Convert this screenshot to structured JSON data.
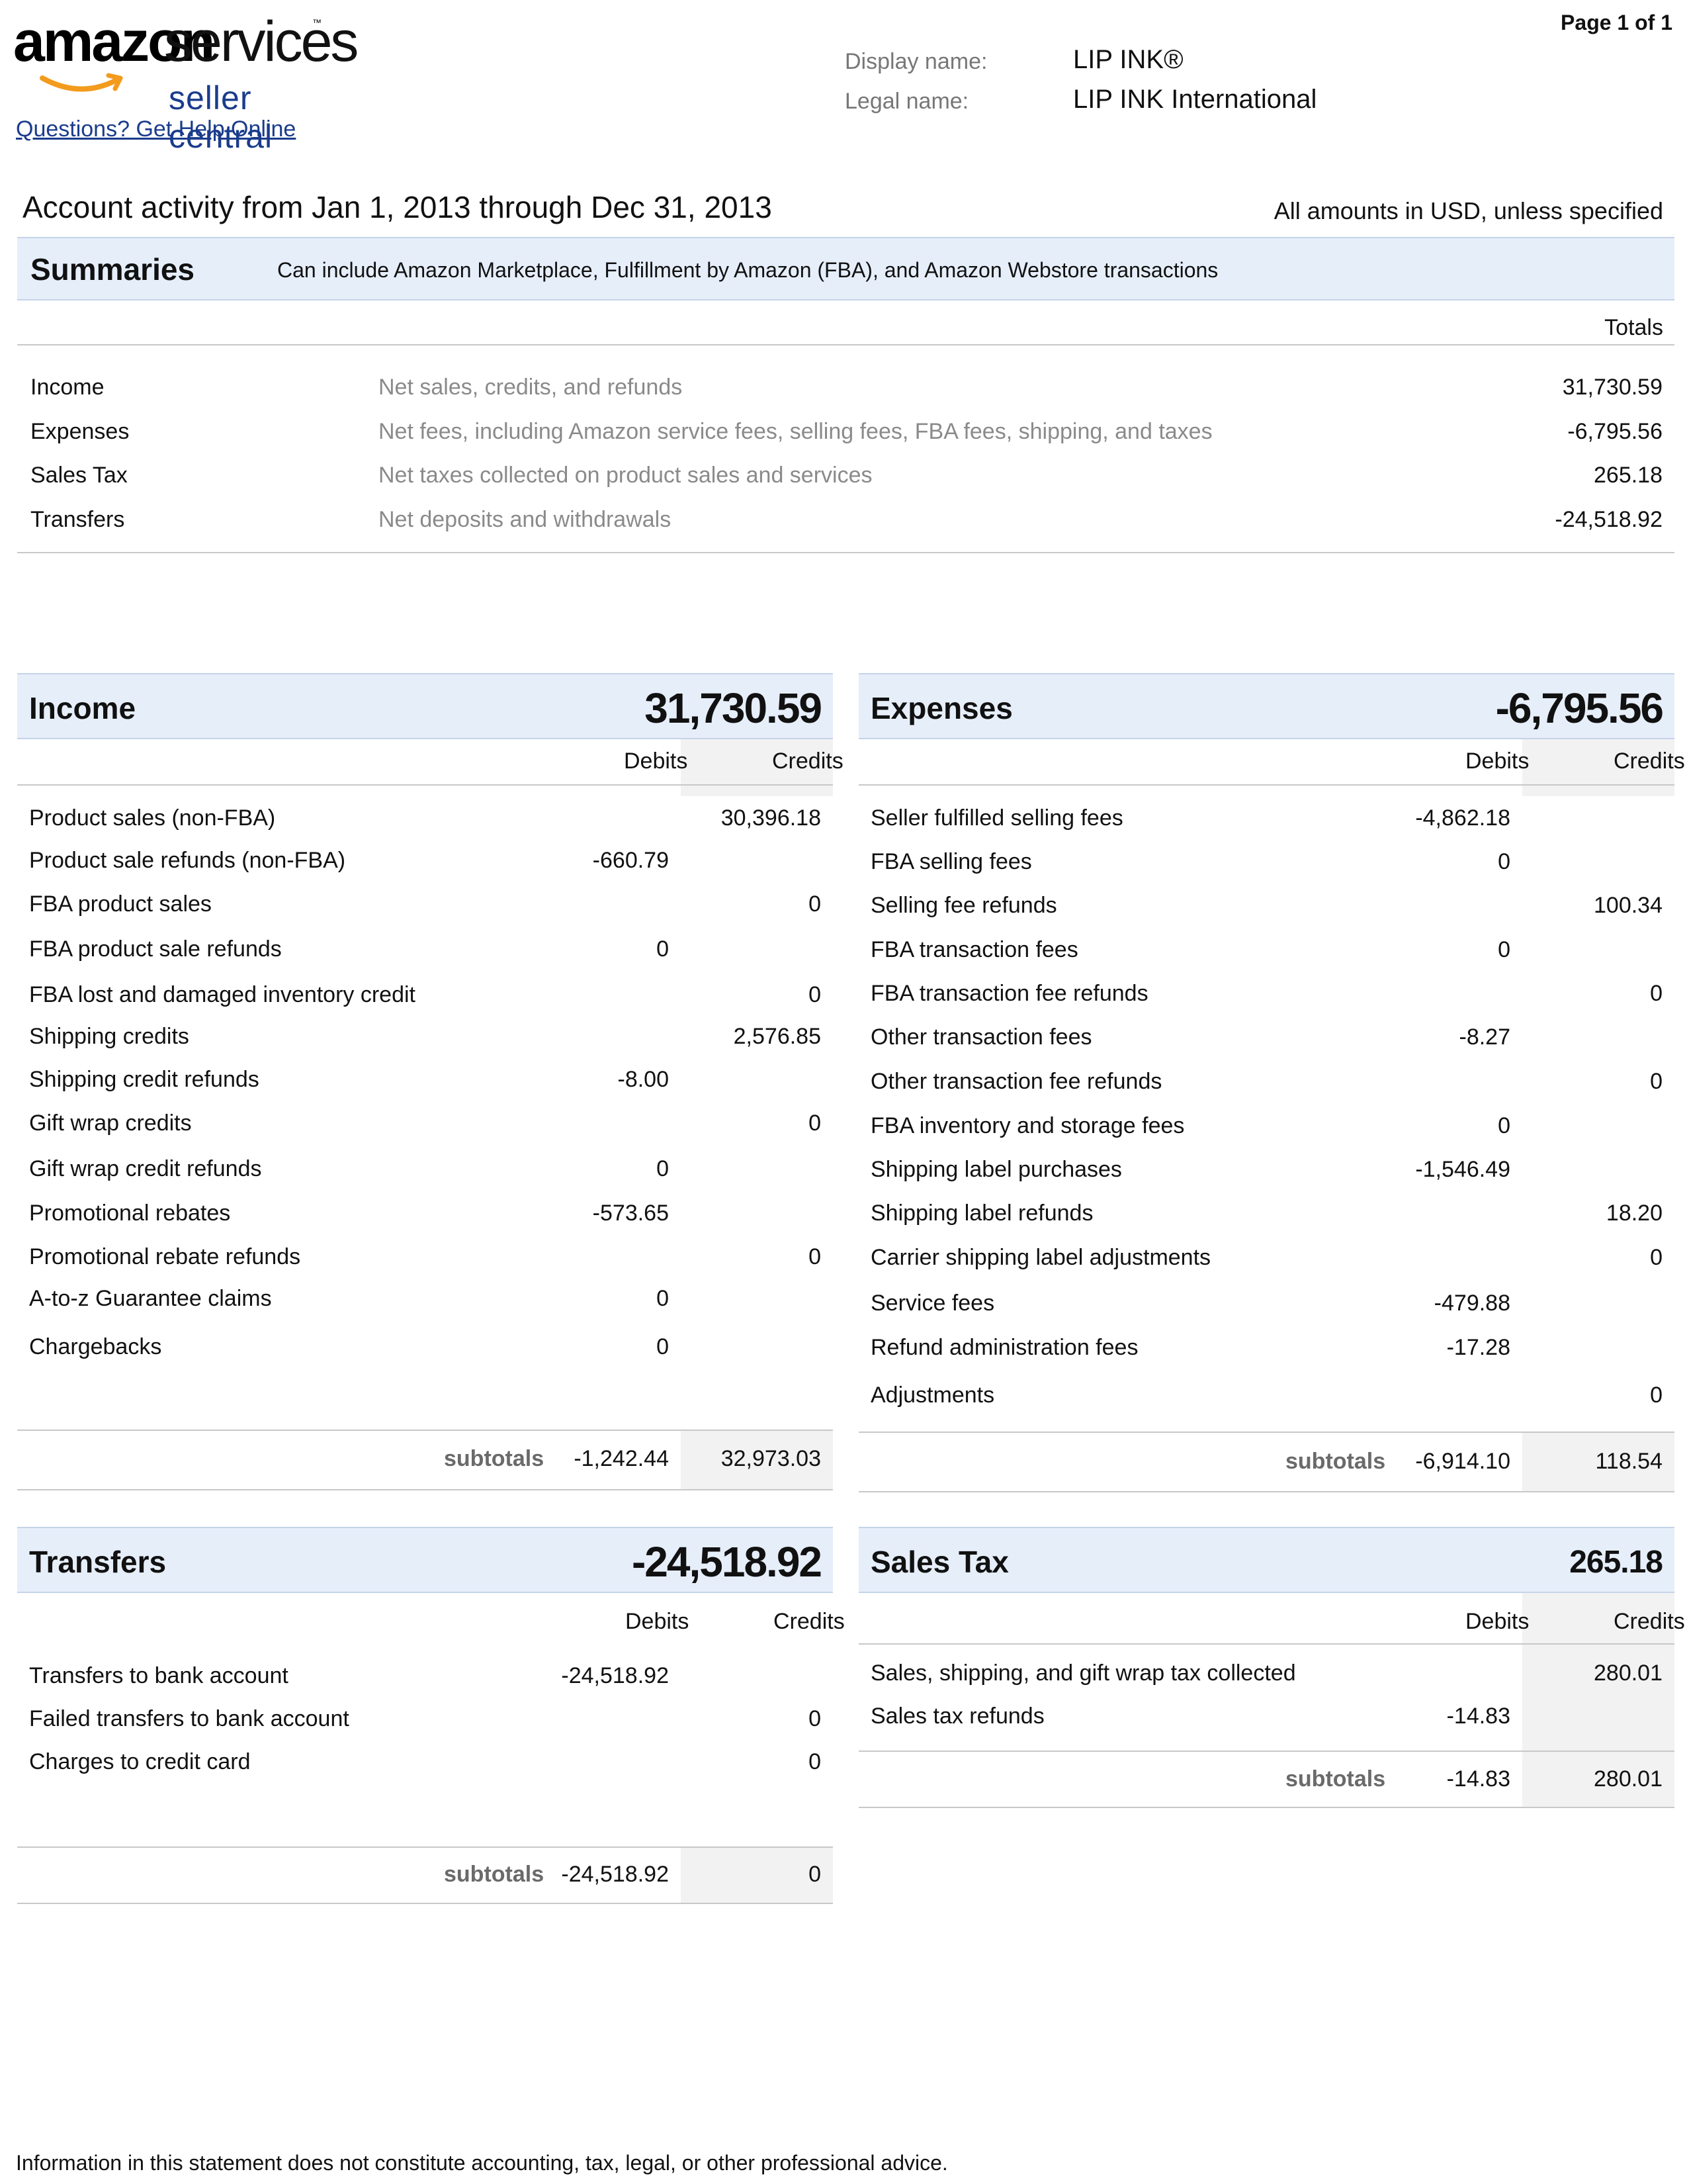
{
  "header": {
    "logo_amazon": "amazon",
    "logo_services": "services",
    "logo_sub": "seller central",
    "help_link": "Questions? Get Help Online",
    "page_number": "Page 1 of 1",
    "display_name_label": "Display name:",
    "display_name_value": "LIP INK®",
    "legal_name_label": "Legal name:",
    "legal_name_value": "LIP INK International",
    "activity_period": "Account activity from Jan 1, 2013 through Dec 31, 2013",
    "amounts_note": "All amounts in USD, unless specified"
  },
  "summaries": {
    "title": "Summaries",
    "description": "Can include Amazon Marketplace, Fulfillment by Amazon (FBA), and Amazon Webstore transactions",
    "totals_header": "Totals",
    "rows": [
      {
        "label": "Income",
        "description": "Net sales, credits, and refunds",
        "value": "31,730.59"
      },
      {
        "label": "Expenses",
        "description": "Net fees, including Amazon service fees, selling fees, FBA fees, shipping, and taxes",
        "value": "-6,795.56"
      },
      {
        "label": "Sales Tax",
        "description": "Net taxes collected on product sales and services",
        "value": "265.18"
      },
      {
        "label": "Transfers",
        "description": "Net deposits and withdrawals",
        "value": "-24,518.92"
      }
    ]
  },
  "columns": {
    "debits": "Debits",
    "credits": "Credits",
    "subtotals": "subtotals"
  },
  "income": {
    "title": "Income",
    "total": "31,730.59",
    "rows": [
      {
        "label": "Product sales (non-FBA)",
        "debit": "",
        "credit": "30,396.18"
      },
      {
        "label": "Product sale refunds (non-FBA)",
        "debit": "-660.79",
        "credit": ""
      },
      {
        "label": "FBA product sales",
        "debit": "",
        "credit": "0"
      },
      {
        "label": "FBA product sale refunds",
        "debit": "0",
        "credit": ""
      },
      {
        "label": "FBA lost and damaged inventory credit",
        "debit": "",
        "credit": "0"
      },
      {
        "label": "Shipping credits",
        "debit": "",
        "credit": "2,576.85"
      },
      {
        "label": "Shipping credit refunds",
        "debit": "-8.00",
        "credit": ""
      },
      {
        "label": "Gift wrap credits",
        "debit": "",
        "credit": "0"
      },
      {
        "label": "Gift wrap credit refunds",
        "debit": "0",
        "credit": ""
      },
      {
        "label": "Promotional rebates",
        "debit": "-573.65",
        "credit": ""
      },
      {
        "label": "Promotional rebate refunds",
        "debit": "",
        "credit": "0"
      },
      {
        "label": "A-to-z Guarantee claims",
        "debit": "0",
        "credit": ""
      },
      {
        "label": "Chargebacks",
        "debit": "0",
        "credit": ""
      }
    ],
    "subtotal_debits": "-1,242.44",
    "subtotal_credits": "32,973.03"
  },
  "expenses": {
    "title": "Expenses",
    "total": "-6,795.56",
    "rows": [
      {
        "label": "Seller fulfilled selling fees",
        "debit": "-4,862.18",
        "credit": ""
      },
      {
        "label": "FBA selling fees",
        "debit": "0",
        "credit": ""
      },
      {
        "label": "Selling fee refunds",
        "debit": "",
        "credit": "100.34"
      },
      {
        "label": "FBA transaction fees",
        "debit": "0",
        "credit": ""
      },
      {
        "label": "FBA transaction fee refunds",
        "debit": "",
        "credit": "0"
      },
      {
        "label": "Other transaction fees",
        "debit": "-8.27",
        "credit": ""
      },
      {
        "label": "Other transaction fee refunds",
        "debit": "",
        "credit": "0"
      },
      {
        "label": "FBA inventory and storage fees",
        "debit": "0",
        "credit": ""
      },
      {
        "label": "Shipping label purchases",
        "debit": "-1,546.49",
        "credit": ""
      },
      {
        "label": "Shipping label refunds",
        "debit": "",
        "credit": "18.20"
      },
      {
        "label": "Carrier shipping label adjustments",
        "debit": "",
        "credit": "0"
      },
      {
        "label": "Service fees",
        "debit": "-479.88",
        "credit": ""
      },
      {
        "label": "Refund administration fees",
        "debit": "-17.28",
        "credit": ""
      },
      {
        "label": "Adjustments",
        "debit": "",
        "credit": "0"
      }
    ],
    "subtotal_debits": "-6,914.10",
    "subtotal_credits": "118.54"
  },
  "transfers": {
    "title": "Transfers",
    "total": "-24,518.92",
    "rows": [
      {
        "label": "Transfers to bank account",
        "debit": "-24,518.92",
        "credit": ""
      },
      {
        "label": "Failed transfers to bank account",
        "debit": "",
        "credit": "0"
      },
      {
        "label": "Charges to credit card",
        "debit": "",
        "credit": "0"
      }
    ],
    "subtotal_debits": "-24,518.92",
    "subtotal_credits": "0"
  },
  "sales_tax": {
    "title": "Sales Tax",
    "total": "265.18",
    "rows": [
      {
        "label": "Sales, shipping, and gift wrap tax collected",
        "debit": "",
        "credit": "280.01"
      },
      {
        "label": "Sales tax refunds",
        "debit": "-14.83",
        "credit": ""
      }
    ],
    "subtotal_debits": "-14.83",
    "subtotal_credits": "280.01"
  },
  "footer": {
    "disclaimer": "Information in this statement does not constitute accounting, tax, legal, or other professional advice."
  },
  "colors": {
    "band": "#e6eefa",
    "link": "#1a3c8c",
    "logo_smile": "#f39b1c",
    "muted_text": "#8a8a8a"
  }
}
